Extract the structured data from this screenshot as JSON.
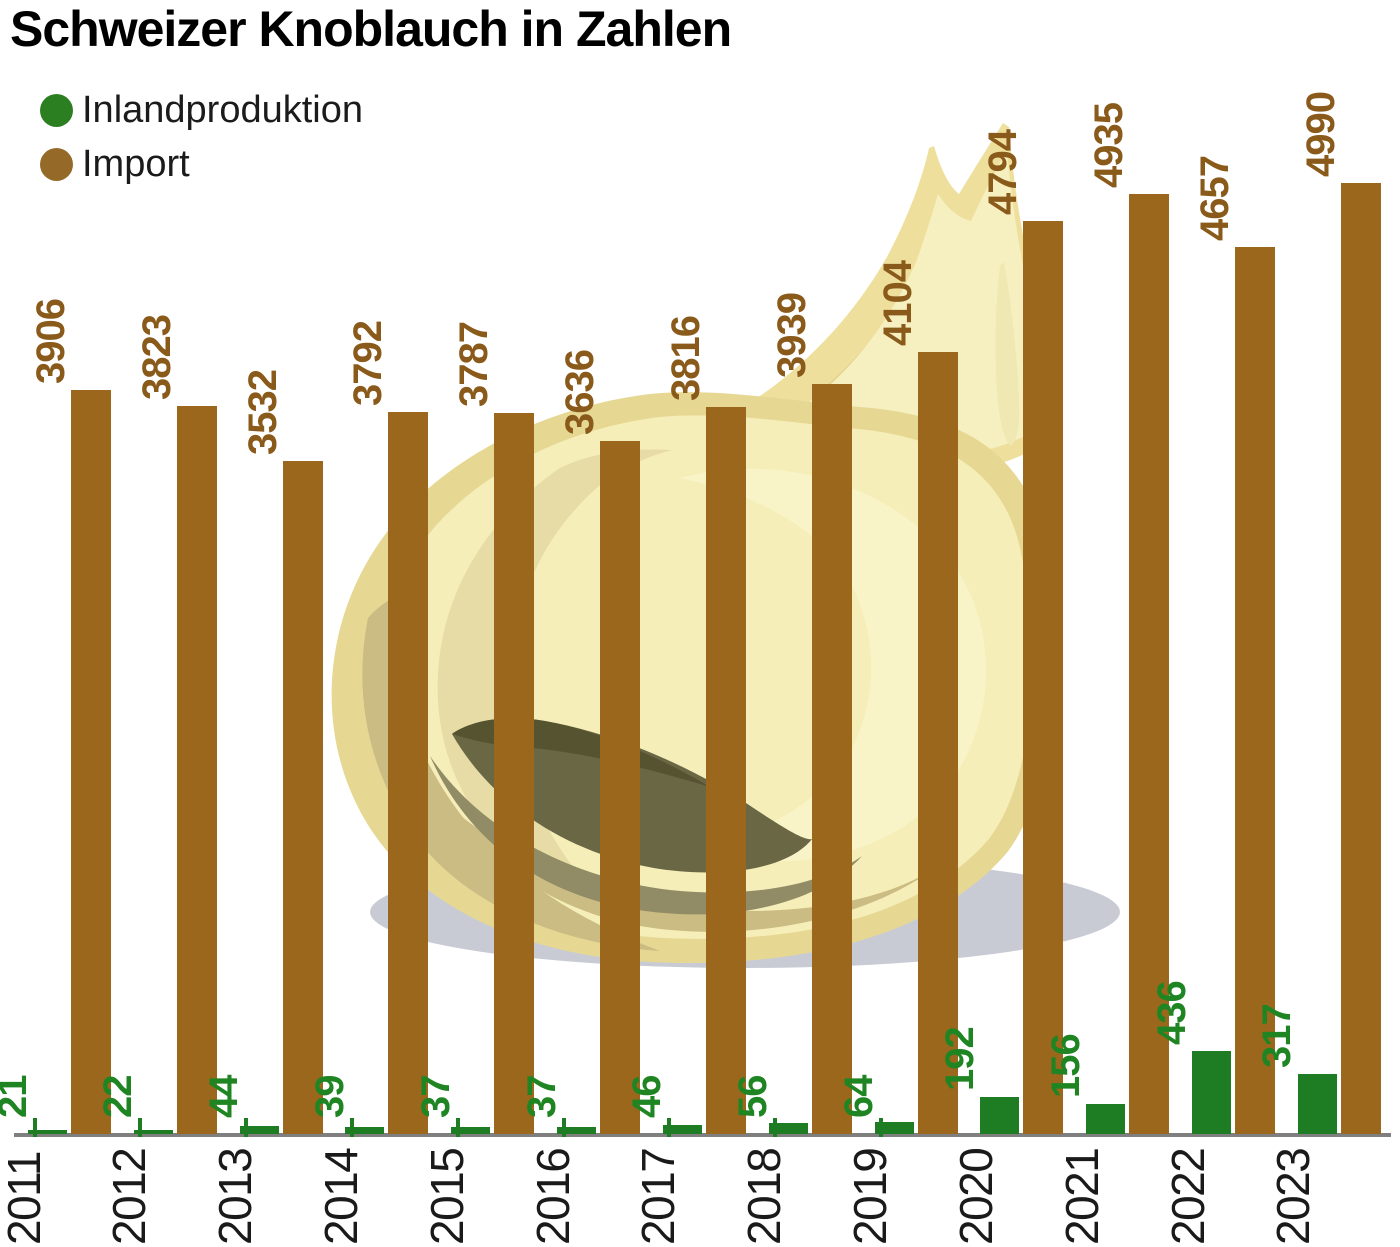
{
  "title": "Schweizer Knoblauch in Zahlen",
  "legend": [
    {
      "label": "Inlandproduktion",
      "color": "#2c7f21"
    },
    {
      "label": "Import",
      "color": "#956a29"
    }
  ],
  "chart_data": {
    "type": "bar",
    "title": "Schweizer Knoblauch in Zahlen",
    "categories": [
      "2011",
      "2012",
      "2013",
      "2014",
      "2015",
      "2016",
      "2017",
      "2018",
      "2019",
      "2020",
      "2021",
      "2022",
      "2023"
    ],
    "series": [
      {
        "name": "Inlandproduktion",
        "color": "#1e7c23",
        "label_color": "#1f8523",
        "values": [
          21,
          22,
          44,
          39,
          37,
          37,
          46,
          56,
          64,
          192,
          156,
          436,
          317
        ]
      },
      {
        "name": "Import",
        "color": "#9a671c",
        "label_color": "#8a5a1a",
        "values": [
          3906,
          3823,
          3532,
          3792,
          3787,
          3636,
          3816,
          3939,
          4104,
          4794,
          4935,
          4657,
          4990
        ]
      }
    ],
    "xlabel": "",
    "ylabel": "",
    "ylim": [
      0,
      5000
    ],
    "grid": false,
    "legend_position": "top-left",
    "value_labels": "rotated-90",
    "axis_color": "#7f7f7f",
    "year_label_color": "#1a1a1a"
  },
  "illustration": {
    "name": "garlic-bulb",
    "palette": {
      "shadow": "#c8cbd3",
      "outline": "#e6d893",
      "body": "#f6eeb8",
      "light": "#f9f3c8",
      "swirl": "#e7dca6",
      "underside": "#cabc82",
      "clove_mid": "#928c66",
      "clove_dark": "#6a6745",
      "clove_darkest": "#565330",
      "stem_outer": "#eee09c",
      "stem_crease": "#e3d48e",
      "stem_light": "#f6efc0",
      "stem_streak": "#f0e8b2"
    }
  }
}
